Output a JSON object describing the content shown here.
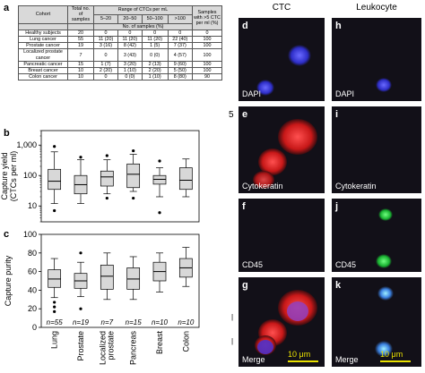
{
  "table": {
    "panel_label": "a",
    "header": {
      "cohort": "Cohort",
      "total": "Total no. of samples",
      "range": "Range of CTCs per mL",
      "bins": [
        "5–20",
        "20–50",
        "50–100",
        ">100"
      ],
      "bins_sub": "No. of samples (%)",
      "samples_gt5": "Samples with >5 CTC per ml (%)"
    },
    "rows": [
      {
        "cohort": "Healthy subjects",
        "total": "20",
        "b1": "0",
        "b2": "0",
        "b3": "0",
        "b4": "0",
        "pct": "0"
      },
      {
        "cohort": "Lung cancer",
        "total": "55",
        "b1": "11 (20)",
        "b2": "11 (20)",
        "b3": "11 (20)",
        "b4": "22 (40)",
        "pct": "100"
      },
      {
        "cohort": "Prostate cancer",
        "total": "19",
        "b1": "3 (16)",
        "b2": "8 (42)",
        "b3": "1 (5)",
        "b4": "7 (37)",
        "pct": "100"
      },
      {
        "cohort": "Localized prostate cancer",
        "total": "7",
        "b1": "0",
        "b2": "3 (43)",
        "b3": "0 (0)",
        "b4": "4 (57)",
        "pct": "100"
      },
      {
        "cohort": "Pancreatic cancer",
        "total": "15",
        "b1": "1 (7)",
        "b2": "3 (20)",
        "b3": "2 (13)",
        "b4": "9 (60)",
        "pct": "100"
      },
      {
        "cohort": "Breast cancer",
        "total": "10",
        "b1": "2 (20)",
        "b2": "1 (10)",
        "b3": "2 (20)",
        "b4": "5 (50)",
        "pct": "100"
      },
      {
        "cohort": "Colon cancer",
        "total": "10",
        "b1": "0",
        "b2": "0 (0)",
        "b3": "1 (10)",
        "b4": "8 (80)",
        "pct": "90"
      }
    ]
  },
  "chart_data": [
    {
      "type": "box",
      "panel_label": "b",
      "ylabel": "Capture yield (CTCs per ml)",
      "yscale": "log",
      "ylim": [
        3,
        3000
      ],
      "yticks": [
        "10",
        "100",
        "1,000"
      ],
      "ytick_values": [
        10,
        100,
        1000
      ],
      "categories": [
        "Lung",
        "Prostate",
        "Localized prostate",
        "Pancreas",
        "Breast",
        "Colon"
      ],
      "boxes": [
        {
          "whisker_low": 12,
          "q1": 35,
          "median": 65,
          "q3": 160,
          "whisker_high": 600,
          "outliers": [
            7,
            900
          ]
        },
        {
          "whisker_low": 12,
          "q1": 25,
          "median": 50,
          "q3": 100,
          "whisker_high": 330,
          "outliers": [
            400
          ]
        },
        {
          "whisker_low": 25,
          "q1": 45,
          "median": 90,
          "q3": 140,
          "whisker_high": 330,
          "outliers": [
            18,
            450
          ]
        },
        {
          "whisker_low": 30,
          "q1": 40,
          "median": 110,
          "q3": 240,
          "whisker_high": 500,
          "outliers": [
            18,
            650
          ]
        },
        {
          "whisker_low": 20,
          "q1": 52,
          "median": 75,
          "q3": 100,
          "whisker_high": 180,
          "outliers": [
            6,
            300
          ]
        },
        {
          "whisker_low": 20,
          "q1": 35,
          "median": 70,
          "q3": 180,
          "whisker_high": 350,
          "outliers": []
        }
      ]
    },
    {
      "type": "box",
      "panel_label": "c",
      "ylabel": "Capture purity",
      "ylim": [
        0,
        100
      ],
      "yticks": [
        "0",
        "20",
        "40",
        "60",
        "80",
        "100"
      ],
      "ytick_values": [
        0,
        20,
        40,
        60,
        80,
        100
      ],
      "categories": [
        "Lung",
        "Prostate",
        "Localized prostate",
        "Pancreas",
        "Breast",
        "Colon"
      ],
      "n_labels": [
        "n=55",
        "n=19",
        "n=7",
        "n=15",
        "n=10",
        "n=10"
      ],
      "boxes": [
        {
          "whisker_low": 32,
          "q1": 43,
          "median": 52,
          "q3": 62,
          "whisker_high": 74,
          "outliers": [
            27,
            22,
            17
          ]
        },
        {
          "whisker_low": 33,
          "q1": 42,
          "median": 50,
          "q3": 58,
          "whisker_high": 70,
          "outliers": [
            80,
            20
          ]
        },
        {
          "whisker_low": 30,
          "q1": 41,
          "median": 55,
          "q3": 67,
          "whisker_high": 80,
          "outliers": []
        },
        {
          "whisker_low": 30,
          "q1": 41,
          "median": 52,
          "q3": 64,
          "whisker_high": 76,
          "outliers": []
        },
        {
          "whisker_low": 38,
          "q1": 50,
          "median": 60,
          "q3": 70,
          "whisker_high": 80,
          "outliers": []
        },
        {
          "whisker_low": 44,
          "q1": 54,
          "median": 64,
          "q3": 74,
          "whisker_high": 86,
          "outliers": []
        }
      ]
    }
  ],
  "micrographs": {
    "column_titles": [
      "CTC",
      "Leukocyte"
    ],
    "panels": [
      {
        "label": "d",
        "stain": "DAPI"
      },
      {
        "label": "h",
        "stain": "DAPI"
      },
      {
        "label": "e",
        "stain": "Cytokeratin"
      },
      {
        "label": "i",
        "stain": "Cytokeratin"
      },
      {
        "label": "f",
        "stain": "CD45"
      },
      {
        "label": "j",
        "stain": "CD45"
      },
      {
        "label": "g",
        "stain": "Merge"
      },
      {
        "label": "k",
        "stain": "Merge"
      }
    ],
    "scale_label": "10 μm",
    "colors": {
      "dapi": "#3a3ae0",
      "cytokeratin": "#e02020",
      "cd45": "#20c040",
      "background": "#121018",
      "scale": "#e8e000"
    }
  },
  "margin_marks": {
    "five": "5",
    "bar": "|",
    "bar2": "|"
  }
}
